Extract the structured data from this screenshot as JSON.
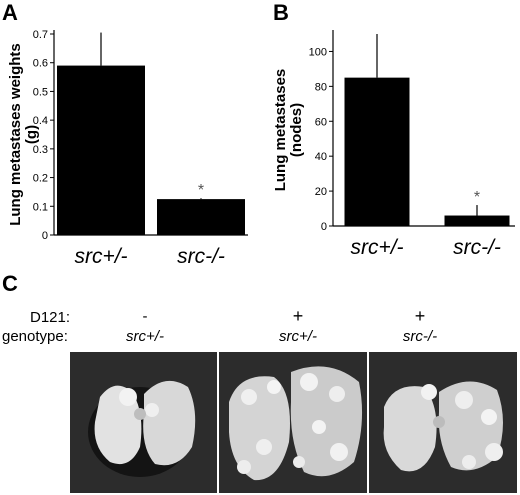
{
  "panel_labels": {
    "a": "A",
    "b": "B",
    "c": "C"
  },
  "chart_data": [
    {
      "type": "bar",
      "categories": [
        "src+/-",
        "src-/-"
      ],
      "category_parts": [
        [
          "src",
          "+/-"
        ],
        [
          "src",
          "-/-"
        ]
      ],
      "values": [
        0.59,
        0.125
      ],
      "errors": [
        0.115,
        0.003
      ],
      "annotations": [
        "",
        "*"
      ],
      "ylabel_lines": [
        "Lung metastases weights",
        "(g)"
      ],
      "ylim": [
        0,
        0.7
      ],
      "yticks": [
        0,
        0.1,
        0.2,
        0.3,
        0.4,
        0.5,
        0.6,
        0.7
      ],
      "ytick_labels": [
        "0",
        "0.1",
        "0.2",
        "0.3",
        "0.4",
        "0.5",
        "0.6",
        "0.7"
      ],
      "grid": false
    },
    {
      "type": "bar",
      "categories": [
        "src+/-",
        "src-/-"
      ],
      "category_parts": [
        [
          "src",
          "+/-"
        ],
        [
          "src",
          "-/-"
        ]
      ],
      "values": [
        85,
        6
      ],
      "errors": [
        25,
        6
      ],
      "annotations": [
        "",
        "*"
      ],
      "ylabel_lines": [
        "Lung metastases",
        "(nodes)"
      ],
      "ylim": [
        0,
        110
      ],
      "yticks": [
        0,
        20,
        40,
        60,
        80,
        100
      ],
      "ytick_labels": [
        "0",
        "20",
        "40",
        "60",
        "80",
        "100"
      ],
      "grid": false
    }
  ],
  "panel_c": {
    "row_labels": [
      "D121:",
      "genotype:"
    ],
    "columns": [
      {
        "d121": "-",
        "genotype": "src+/-"
      },
      {
        "d121": "+",
        "genotype": "src+/-"
      },
      {
        "d121": "+",
        "genotype": "src-/-"
      }
    ],
    "photos": [
      "lung-photo",
      "lung-photo",
      "lung-photo"
    ]
  }
}
